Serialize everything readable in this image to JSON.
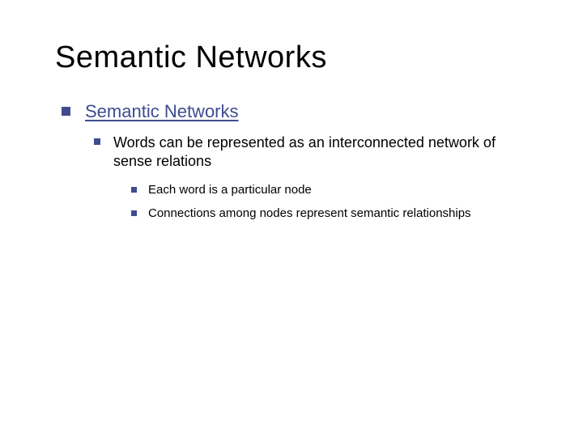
{
  "slide": {
    "title": "Semantic Networks",
    "title_color": "#000000",
    "title_fontsize": 38,
    "bullet_color": "#3f4b8f",
    "background_color": "#ffffff",
    "level1": {
      "text": "Semantic Networks",
      "color": "#3f4b8f",
      "fontsize": 22,
      "underline": true
    },
    "level2": {
      "text": "Words can be represented as an interconnected network of sense relations",
      "color": "#000000",
      "fontsize": 18
    },
    "level3": [
      {
        "text": "Each word is a particular node",
        "color": "#000000",
        "fontsize": 15
      },
      {
        "text": "Connections among nodes represent semantic relationships",
        "color": "#000000",
        "fontsize": 15
      }
    ]
  }
}
